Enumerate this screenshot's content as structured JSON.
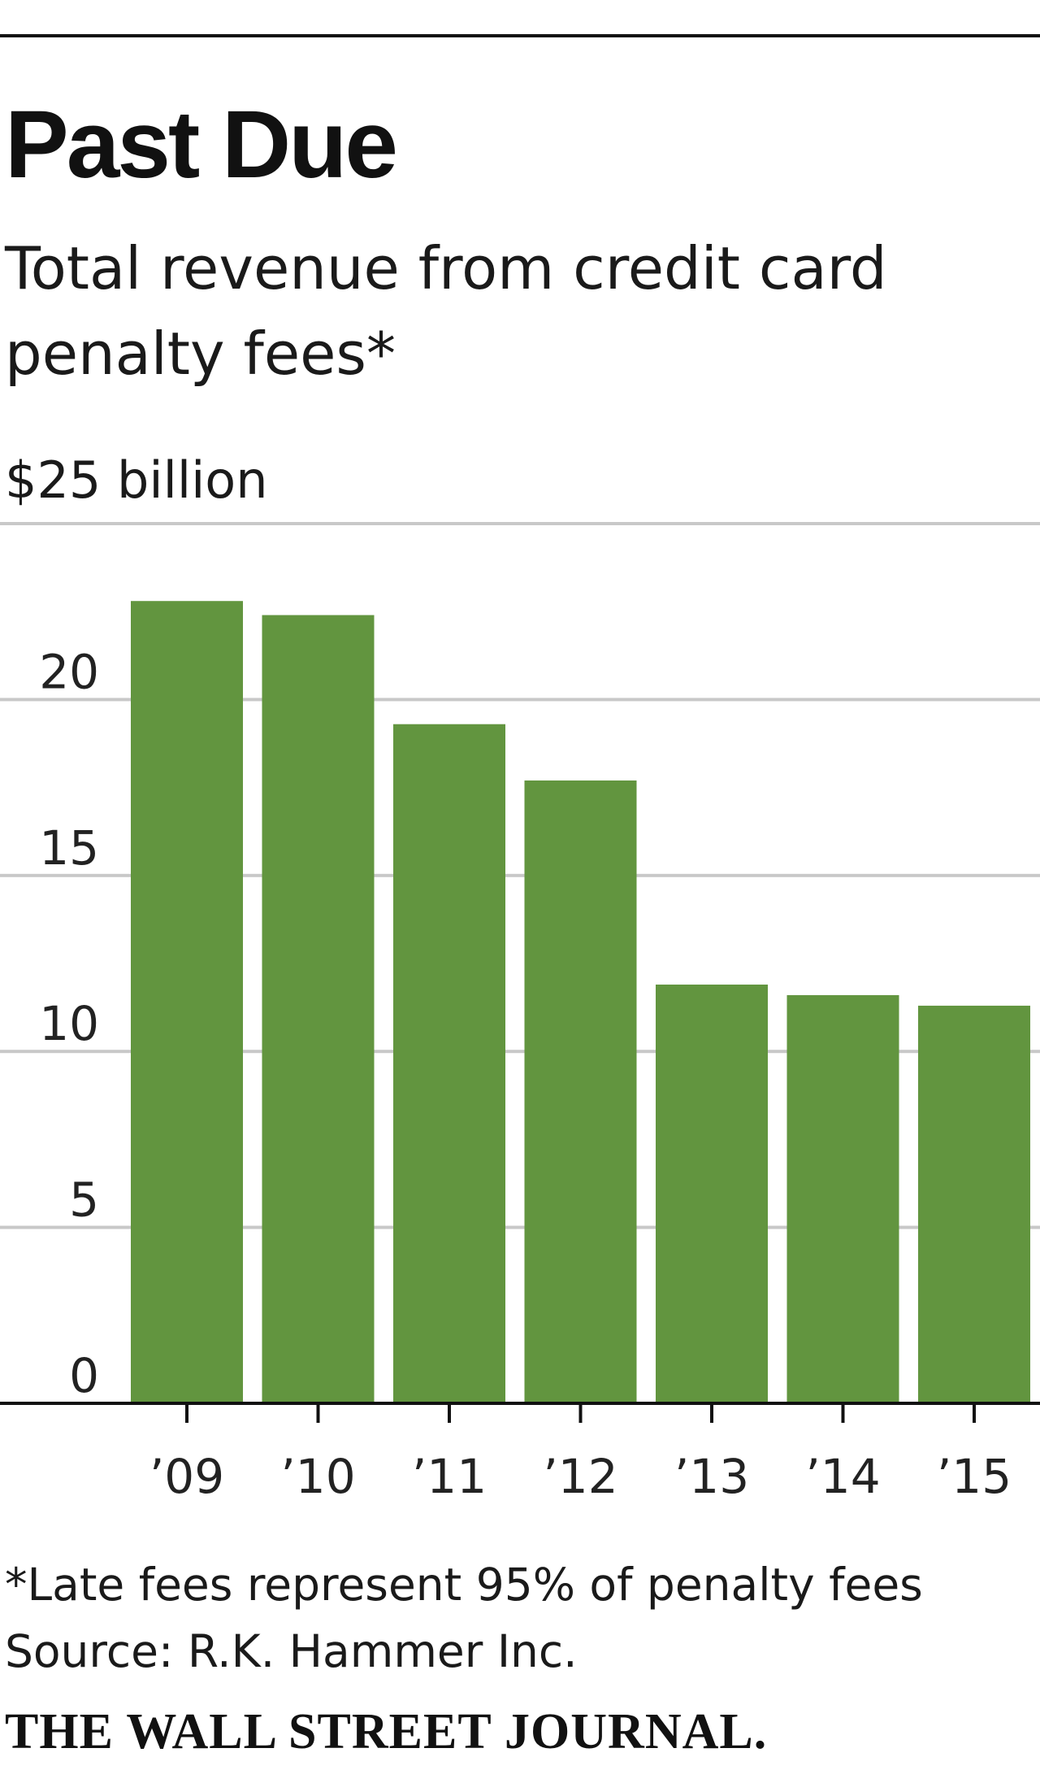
{
  "chart_data": {
    "type": "bar",
    "title": "Past Due",
    "subtitle_lines": [
      "Total revenue from credit card",
      "penalty fees*"
    ],
    "unit_label": "$25 billion",
    "categories": [
      "’09",
      "’10",
      "’11",
      "’12",
      "’13",
      "’14",
      "’15"
    ],
    "values": [
      22.8,
      22.4,
      19.3,
      17.7,
      11.9,
      11.6,
      11.3
    ],
    "ylim": [
      0,
      25
    ],
    "yticks": [
      0,
      5,
      10,
      15,
      20,
      25
    ],
    "ytick_labels": [
      "0",
      "5",
      "10",
      "15",
      "20",
      ""
    ],
    "grid": true,
    "bar_color": "#62953f",
    "grid_color": "#c8c8c8",
    "axis_color": "#111111"
  },
  "footnote": "*Late fees represent 95% of penalty fees",
  "source": "Source: R.K. Hammer Inc.",
  "brand": "THE WALL STREET JOURNAL."
}
